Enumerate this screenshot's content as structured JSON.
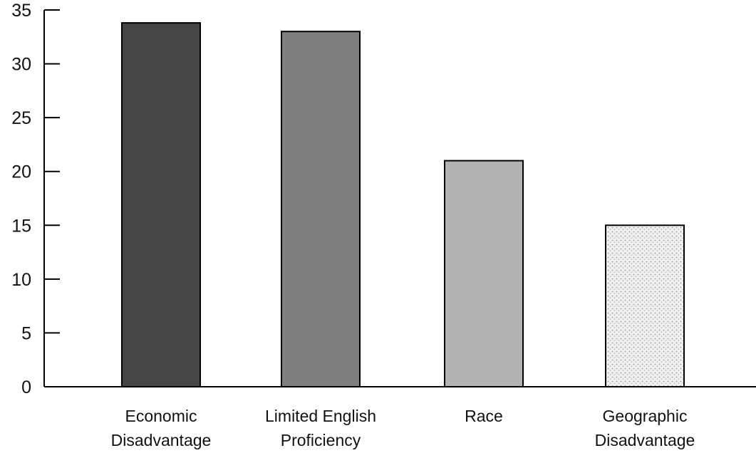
{
  "chart_data": {
    "type": "bar",
    "title": "",
    "xlabel": "",
    "ylabel": "",
    "categories": [
      [
        "Economic",
        "Disadvantage"
      ],
      [
        "Limited English",
        "Proficiency"
      ],
      [
        "Race"
      ],
      [
        "Geographic",
        "Disadvantage"
      ]
    ],
    "values": [
      33.8,
      33,
      21,
      15
    ],
    "bar_colors": [
      "#454545",
      "#7f7f7f",
      "#b3b3b3",
      "#e6e6e6"
    ],
    "bar_patterns": [
      "solid",
      "solid",
      "solid",
      "stipple"
    ],
    "ylim": [
      0,
      35
    ],
    "yticks": [
      "0",
      "5",
      "10",
      "15",
      "20",
      "25",
      "30",
      "35"
    ],
    "grid": false,
    "legend": "none"
  }
}
